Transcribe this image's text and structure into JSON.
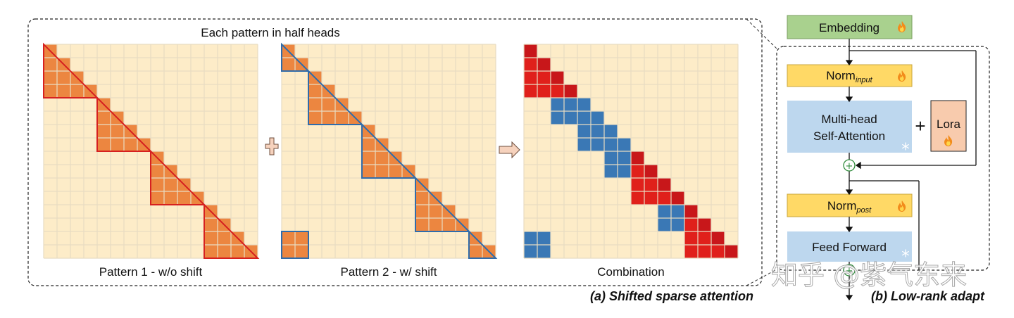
{
  "panel_a": {
    "top_title": "Each pattern in half heads",
    "grids": [
      {
        "name": "pattern-1",
        "caption": "Pattern 1 - w/o shift",
        "cells": 16
      },
      {
        "name": "pattern-2",
        "caption": "Pattern 2 - w/ shift",
        "cells": 16
      },
      {
        "name": "combination",
        "caption": "Combination",
        "cells": 16
      }
    ],
    "caption": "(a) Shifted sparse attention",
    "operator_plus": "+",
    "colors": {
      "grid_bg": "#fdecc8",
      "grid_line": "#d9c8a8",
      "orange": "#ec8640",
      "red": "#e0201b",
      "red_dark": "#c8171a",
      "blue": "#3a78b5",
      "blue_dark": "#2c5f94",
      "red_outline": "#d62020",
      "blue_outline": "#2f6cab"
    }
  },
  "panel_b": {
    "caption": "(b) Low-rank adapt",
    "embedding": "Embedding",
    "norm_input": {
      "main": "Norm",
      "sub": "input"
    },
    "mhsa_line1": "Multi-head",
    "mhsa_line2": "Self-Attention",
    "plus": "+",
    "lora": "Lora",
    "norm_post": {
      "main": "Norm",
      "sub": "post"
    },
    "feed_forward": "Feed Forward",
    "icons": {
      "trainable": "fire-icon",
      "frozen": "snowflake-icon"
    },
    "colors": {
      "green": "#a9d18e",
      "norm": "#ffd966",
      "blue_box": "#bdd7ee",
      "lora": "#f8cbad"
    }
  },
  "watermark": "知乎 @紫气东来"
}
